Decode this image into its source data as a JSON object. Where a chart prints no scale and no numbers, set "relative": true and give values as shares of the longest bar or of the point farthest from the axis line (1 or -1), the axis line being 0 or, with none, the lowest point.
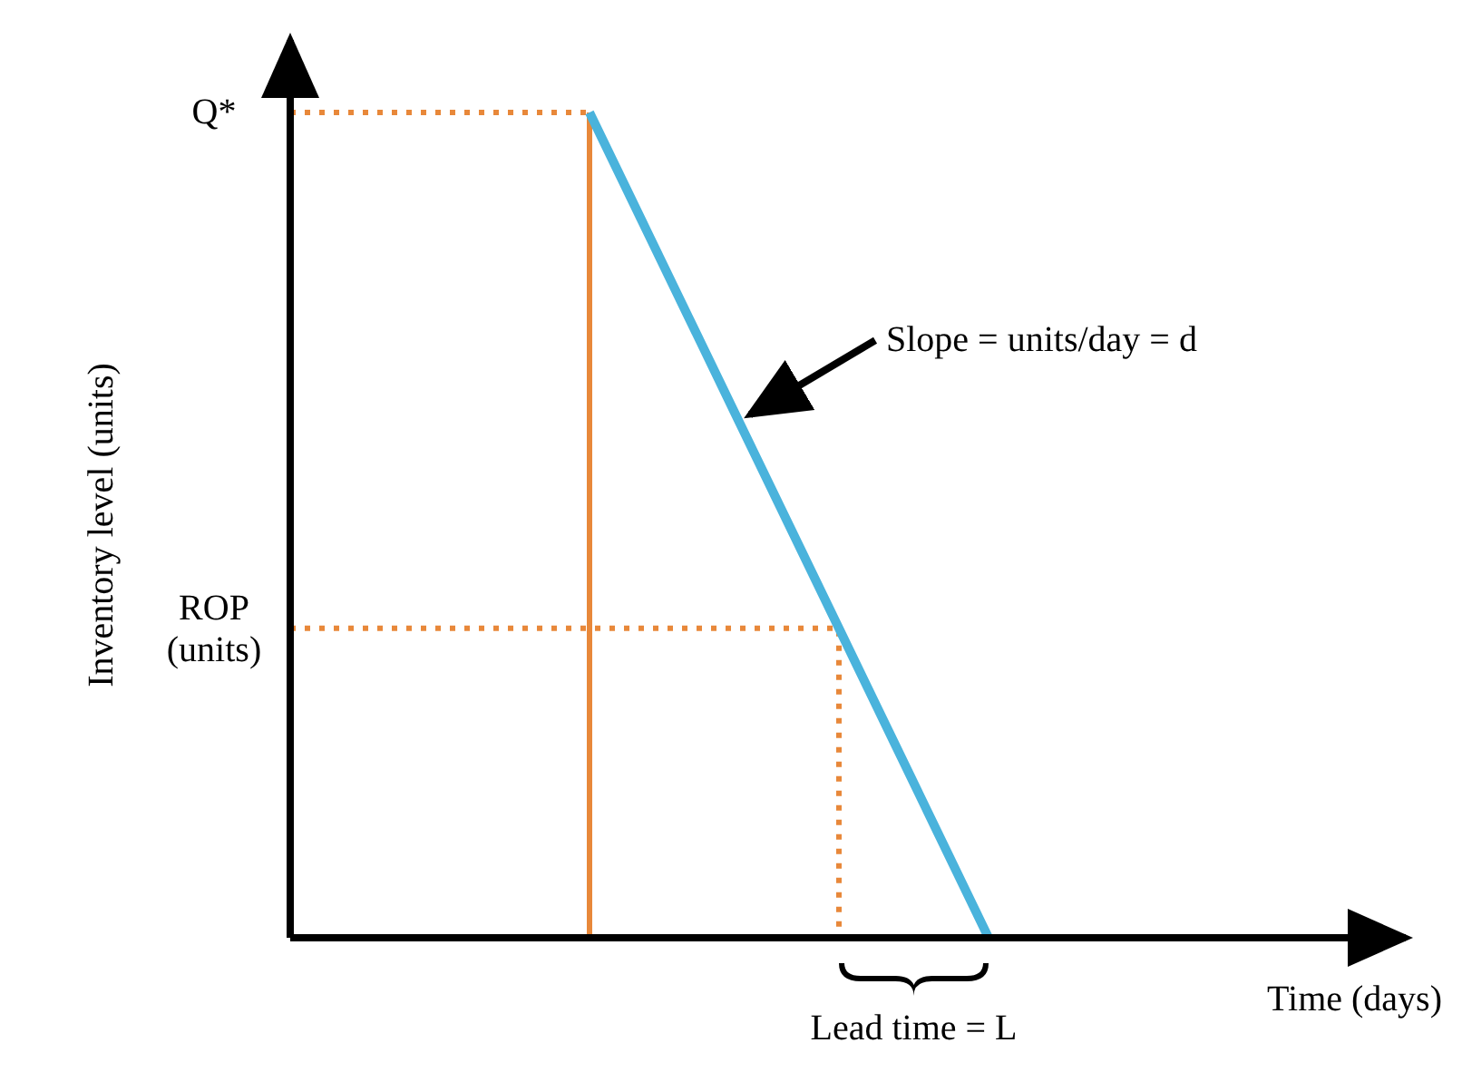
{
  "chart_data": {
    "type": "line",
    "relative": true,
    "xlabel": "Time (days)",
    "ylabel": "Inventory level (units)",
    "categories": [
      null,
      null,
      null,
      null,
      null,
      null,
      null,
      null,
      null,
      null,
      null,
      null,
      null,
      null,
      null,
      null,
      null,
      null,
      null,
      null,
      null,
      null,
      null
    ],
    "series": [
      {
        "color": "#4ab3dc",
        "values": [
          null,
          null,
          null,
          null,
          null,
          null,
          1,
          0.875,
          0.75,
          0.625,
          0.5,
          0.375,
          0.25,
          0.125,
          0,
          null,
          null,
          null,
          null,
          null,
          null,
          null,
          null
        ]
      }
    ],
    "ref_lines": [
      {
        "axis": "y",
        "value": 1,
        "label": "Q*",
        "color": "#e8883a",
        "line_style": "dotted"
      },
      {
        "axis": "y",
        "value": 0.375,
        "label": "ROP (units)",
        "color": "#e8883a",
        "line_style": "dotted"
      }
    ],
    "annotations": [
      "Slope = units/day = d",
      "Lead time = L"
    ]
  }
}
